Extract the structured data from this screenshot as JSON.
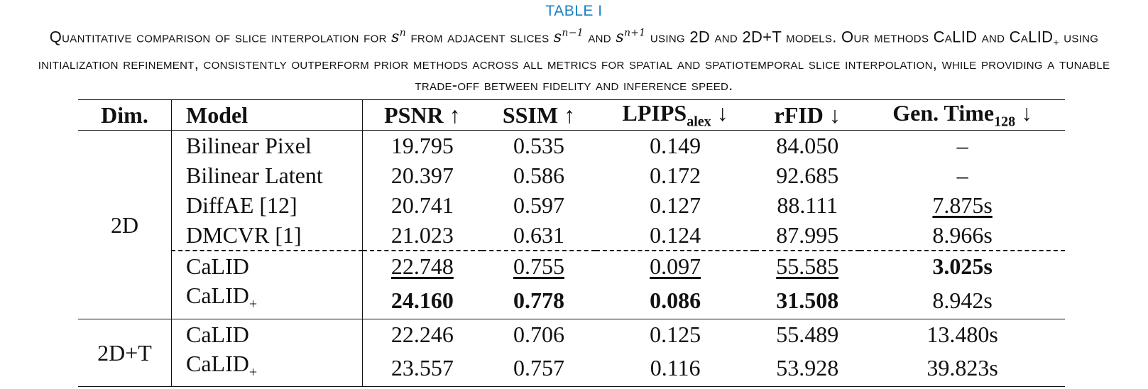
{
  "table_label": "TABLE I",
  "caption": {
    "part1": "Quantitative comparison of slice interpolation for ",
    "sym_s": "s",
    "sup_n": "n",
    "part2": " from adjacent slices ",
    "sup_n_minus": "n−1",
    "part3": " and ",
    "sup_n_plus": "n+1",
    "part4": " using 2D and 2D+T models. Our methods CaLID and CaLID",
    "sub_plus": "+",
    "part5": " using initialization refinement, consistently outperform prior methods across all metrics for spatial and spatiotemporal slice interpolation, while providing a tunable trade-off between fidelity and inference speed."
  },
  "headers": {
    "dim": "Dim.",
    "model": "Model",
    "psnr": "PSNR ↑",
    "ssim": "SSIM ↑",
    "lpips": "LPIPS",
    "lpips_sub": "alex",
    "lpips_arrow": " ↓",
    "rfid": "rFID ↓",
    "gen_time": "Gen. Time",
    "gen_time_sub": "128",
    "gen_time_arrow": " ↓"
  },
  "groups": {
    "g2d": "2D",
    "g2dt": "2D+T"
  },
  "rows": [
    {
      "model": "Bilinear Pixel",
      "model_sub": "",
      "psnr": "19.795",
      "ssim": "0.535",
      "lpips": "0.149",
      "rfid": "84.050",
      "gen_time": "–"
    },
    {
      "model": "Bilinear Latent",
      "model_sub": "",
      "psnr": "20.397",
      "ssim": "0.586",
      "lpips": "0.172",
      "rfid": "92.685",
      "gen_time": "–"
    },
    {
      "model": "DiffAE [12]",
      "model_sub": "",
      "psnr": "20.741",
      "ssim": "0.597",
      "lpips": "0.127",
      "rfid": "88.111",
      "gen_time": "7.875s"
    },
    {
      "model": "DMCVR [1]",
      "model_sub": "",
      "psnr": "21.023",
      "ssim": "0.631",
      "lpips": "0.124",
      "rfid": "87.995",
      "gen_time": "8.966s"
    },
    {
      "model": "CaLID",
      "model_sub": "",
      "psnr": "22.748",
      "ssim": "0.755",
      "lpips": "0.097",
      "rfid": "55.585",
      "gen_time": "3.025s"
    },
    {
      "model": "CaLID",
      "model_sub": "+",
      "psnr": "24.160",
      "ssim": "0.778",
      "lpips": "0.086",
      "rfid": "31.508",
      "gen_time": "8.942s"
    },
    {
      "model": "CaLID",
      "model_sub": "",
      "psnr": "22.246",
      "ssim": "0.706",
      "lpips": "0.125",
      "rfid": "55.489",
      "gen_time": "13.480s"
    },
    {
      "model": "CaLID",
      "model_sub": "+",
      "psnr": "23.557",
      "ssim": "0.757",
      "lpips": "0.116",
      "rfid": "53.928",
      "gen_time": "39.823s"
    }
  ]
}
